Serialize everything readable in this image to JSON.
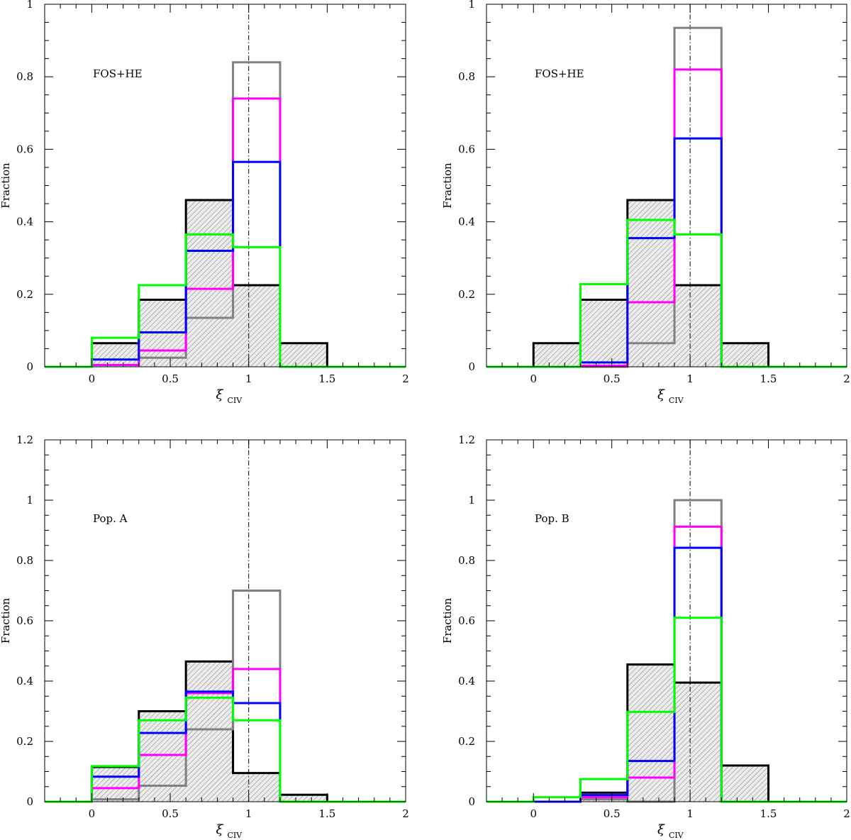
{
  "figure": {
    "colors": {
      "black": "#000000",
      "gray": "#808080",
      "magenta": "#ff00ff",
      "blue": "#0000ff",
      "green": "#00ff00",
      "hatch": "#7a7a7a"
    }
  },
  "chart_data": [
    {
      "type": "bar",
      "panel": "top-left",
      "label": "FOS+HE",
      "xlabel": "ξ",
      "xlabel_sub": "CIV",
      "ylabel": "Fraction",
      "xlim": [
        -0.3,
        2
      ],
      "ylim": [
        0,
        1
      ],
      "xticks": [
        0,
        0.5,
        1,
        1.5,
        2
      ],
      "xtick_labels": [
        "0",
        "0.5",
        "1",
        "1.5",
        "2"
      ],
      "yticks": [
        0,
        0.2,
        0.4,
        0.6,
        0.8,
        1
      ],
      "ytick_labels": [
        "0",
        "0.2",
        "0.4",
        "0.6",
        "0.8",
        "1"
      ],
      "reference_line_x": 1,
      "bin_edges": [
        -0.3,
        0,
        0.3,
        0.6,
        0.9,
        1.2,
        1.5,
        2
      ],
      "series": [
        {
          "name": "black (hatched)",
          "color": "black",
          "hatched": true,
          "values": [
            0,
            0.065,
            0.185,
            0.46,
            0.225,
            0.065,
            0
          ]
        },
        {
          "name": "gray",
          "color": "gray",
          "values": [
            0,
            0.005,
            0.025,
            0.135,
            0.84,
            0,
            0
          ]
        },
        {
          "name": "magenta",
          "color": "magenta",
          "values": [
            0,
            0.005,
            0.045,
            0.215,
            0.74,
            0,
            0
          ]
        },
        {
          "name": "blue",
          "color": "blue",
          "values": [
            0,
            0.02,
            0.095,
            0.32,
            0.565,
            0,
            0
          ]
        },
        {
          "name": "green",
          "color": "green",
          "values": [
            0,
            0.08,
            0.225,
            0.365,
            0.33,
            0,
            0
          ]
        }
      ]
    },
    {
      "type": "bar",
      "panel": "top-right",
      "label": "FOS+HE",
      "xlabel": "ξ",
      "xlabel_sub": "CIV",
      "ylabel": "Fraction",
      "xlim": [
        -0.3,
        2
      ],
      "ylim": [
        0,
        1
      ],
      "xticks": [
        0,
        0.5,
        1,
        1.5,
        2
      ],
      "xtick_labels": [
        "0",
        "0.5",
        "1",
        "1.5",
        "2"
      ],
      "yticks": [
        0,
        0.2,
        0.4,
        0.6,
        0.8,
        1
      ],
      "ytick_labels": [
        "0",
        "0.2",
        "0.4",
        "0.6",
        "0.8",
        "1"
      ],
      "reference_line_x": 1,
      "bin_edges": [
        -0.3,
        0,
        0.3,
        0.6,
        0.9,
        1.2,
        1.5,
        2
      ],
      "series": [
        {
          "name": "black (hatched)",
          "color": "black",
          "hatched": true,
          "values": [
            0,
            0.065,
            0.185,
            0.46,
            0.225,
            0.065,
            0
          ]
        },
        {
          "name": "gray",
          "color": "gray",
          "values": [
            0,
            0,
            0,
            0.065,
            0.935,
            0,
            0
          ]
        },
        {
          "name": "magenta",
          "color": "magenta",
          "values": [
            0,
            0,
            0.003,
            0.178,
            0.82,
            0,
            0
          ]
        },
        {
          "name": "blue",
          "color": "blue",
          "values": [
            0,
            0,
            0.012,
            0.355,
            0.63,
            0,
            0
          ]
        },
        {
          "name": "green",
          "color": "green",
          "values": [
            0,
            0,
            0.228,
            0.405,
            0.365,
            0,
            0
          ]
        }
      ]
    },
    {
      "type": "bar",
      "panel": "bottom-left",
      "label": "Pop. A",
      "xlabel": "ξ",
      "xlabel_sub": "CIV",
      "ylabel": "Fraction",
      "xlim": [
        -0.3,
        2
      ],
      "ylim": [
        0,
        1.2
      ],
      "xticks": [
        0,
        0.5,
        1,
        1.5,
        2
      ],
      "xtick_labels": [
        "0",
        "0.5",
        "1",
        "1.5",
        "2"
      ],
      "yticks": [
        0,
        0.2,
        0.4,
        0.6,
        0.8,
        1,
        1.2
      ],
      "ytick_labels": [
        "0",
        "0.2",
        "0.4",
        "0.6",
        "0.8",
        "1",
        "1.2"
      ],
      "reference_line_x": 1,
      "bin_edges": [
        -0.3,
        0,
        0.3,
        0.6,
        0.9,
        1.2,
        1.5,
        2
      ],
      "series": [
        {
          "name": "black (hatched)",
          "color": "black",
          "hatched": true,
          "values": [
            0,
            0.115,
            0.3,
            0.465,
            0.095,
            0.023,
            0
          ]
        },
        {
          "name": "gray",
          "color": "gray",
          "values": [
            0,
            0.008,
            0.053,
            0.24,
            0.7,
            0,
            0
          ]
        },
        {
          "name": "magenta",
          "color": "magenta",
          "values": [
            0,
            0.045,
            0.155,
            0.36,
            0.44,
            0,
            0
          ]
        },
        {
          "name": "blue",
          "color": "blue",
          "values": [
            0,
            0.083,
            0.228,
            0.365,
            0.327,
            0,
            0
          ]
        },
        {
          "name": "green",
          "color": "green",
          "values": [
            0,
            0.118,
            0.27,
            0.345,
            0.27,
            0,
            0
          ]
        }
      ]
    },
    {
      "type": "bar",
      "panel": "bottom-right",
      "label": "Pop. B",
      "xlabel": "ξ",
      "xlabel_sub": "CIV",
      "ylabel": "Fraction",
      "xlim": [
        -0.3,
        2
      ],
      "ylim": [
        0,
        1.2
      ],
      "xticks": [
        0,
        0.5,
        1,
        1.5,
        2
      ],
      "xtick_labels": [
        "0",
        "0.5",
        "1",
        "1.5",
        "2"
      ],
      "yticks": [
        0,
        0.2,
        0.4,
        0.6,
        0.8,
        1,
        1.2
      ],
      "ytick_labels": [
        "0",
        "0.2",
        "0.4",
        "0.6",
        "0.8",
        "1",
        "1.2"
      ],
      "reference_line_x": 1,
      "bin_edges": [
        -0.3,
        0,
        0.3,
        0.6,
        0.9,
        1.2,
        1.5,
        2
      ],
      "series": [
        {
          "name": "black (hatched)",
          "color": "black",
          "hatched": true,
          "values": [
            0,
            0,
            0.03,
            0.455,
            0.395,
            0.12,
            0
          ]
        },
        {
          "name": "gray",
          "color": "gray",
          "values": [
            0,
            0,
            0.008,
            0,
            1.0,
            0,
            0
          ]
        },
        {
          "name": "magenta",
          "color": "magenta",
          "values": [
            0,
            0,
            0.015,
            0.08,
            0.912,
            0,
            0
          ]
        },
        {
          "name": "blue",
          "color": "blue",
          "values": [
            0,
            0,
            0.022,
            0.135,
            0.842,
            0,
            0
          ]
        },
        {
          "name": "green",
          "color": "green",
          "values": [
            0,
            0.015,
            0.075,
            0.298,
            0.61,
            0,
            0
          ]
        }
      ]
    }
  ]
}
